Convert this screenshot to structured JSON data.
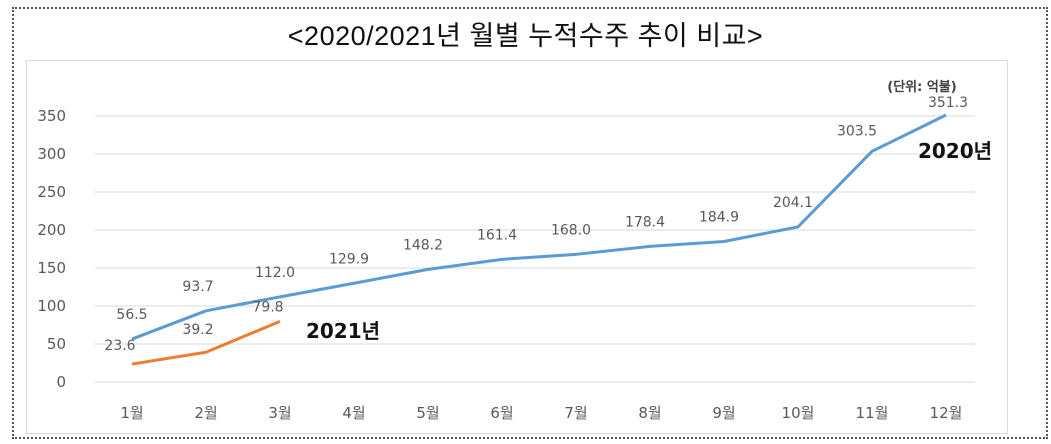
{
  "title": "<2020/2021년 월별 누적수주 추이 비교>",
  "unit_label": "(단위: 억불)",
  "colors": {
    "series_2020": "#5b9bd5",
    "series_2021": "#ed7d31",
    "grid": "#d9d9d9",
    "tick_text": "#595959"
  },
  "chart_data": {
    "type": "line",
    "title": "<2020/2021년 월별 누적수주 추이 비교>",
    "xlabel": "",
    "ylabel": "",
    "unit": "(단위: 억불)",
    "categories": [
      "1월",
      "2월",
      "3월",
      "4월",
      "5월",
      "6월",
      "7월",
      "8월",
      "9월",
      "10월",
      "11월",
      "12월"
    ],
    "yticks": [
      0,
      50,
      100,
      150,
      200,
      250,
      300,
      350
    ],
    "ylim": [
      0,
      350
    ],
    "grid": true,
    "legend": "inline labels",
    "series": [
      {
        "name": "2020년",
        "color": "#5b9bd5",
        "values": [
          56.5,
          93.7,
          112.0,
          129.9,
          148.2,
          161.4,
          168.0,
          178.4,
          184.9,
          204.1,
          303.5,
          351.3
        ],
        "labels": [
          "56.5",
          "93.7",
          "112.0",
          "129.9",
          "148.2",
          "161.4",
          "168.0",
          "178.4",
          "184.9",
          "204.1",
          "303.5",
          "351.3"
        ]
      },
      {
        "name": "2021년",
        "color": "#ed7d31",
        "values": [
          23.6,
          39.2,
          79.8
        ],
        "labels": [
          "23.6",
          "39.2",
          "79.8"
        ]
      }
    ]
  }
}
